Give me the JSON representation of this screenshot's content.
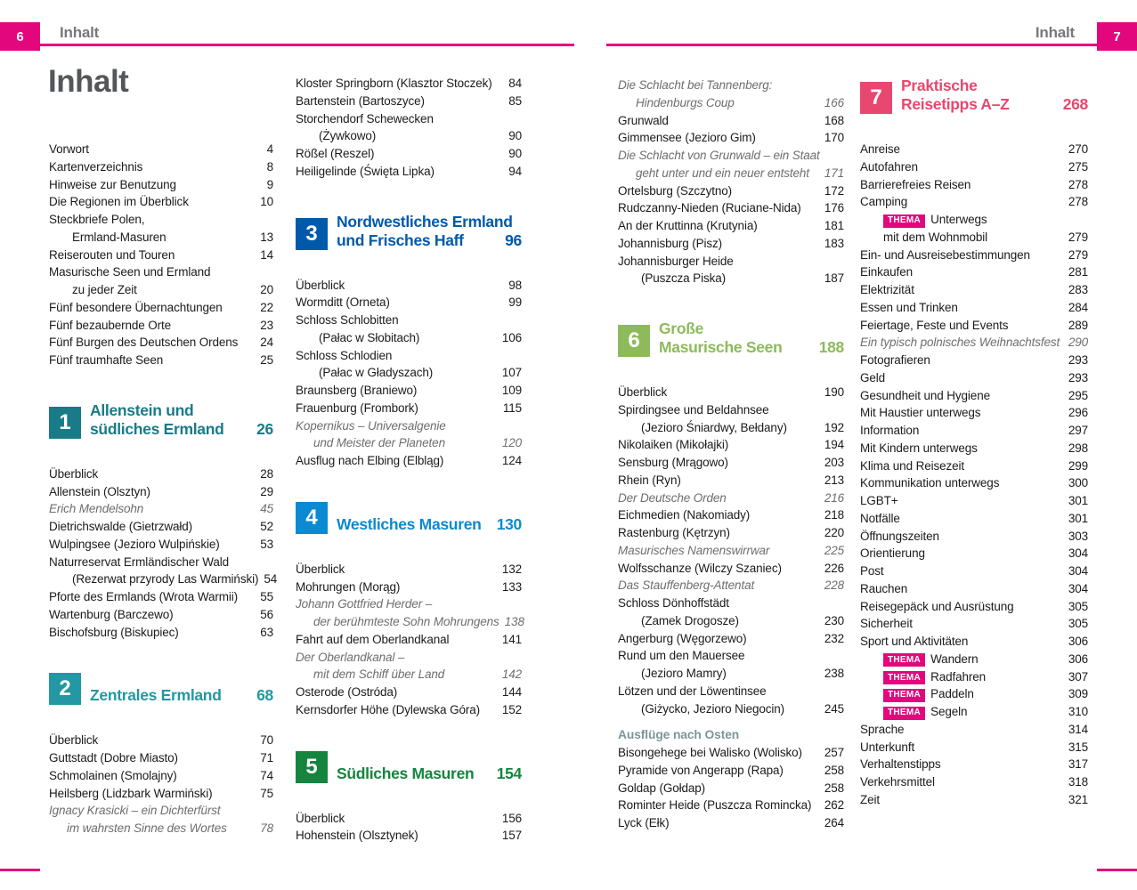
{
  "header": {
    "left_page_number": "6",
    "right_page_number": "7",
    "running_title_left": "Inhalt",
    "running_title_right": "Inhalt"
  },
  "title": "Inhalt",
  "thema_label": "THEMA",
  "colors": {
    "brand_pink": "#e3077d",
    "running_head_gray": "#77787b",
    "title_gray": "#55565b",
    "body_text": "#1b1b1b",
    "italic_gray": "#6d6e70",
    "subheading_gray_green": "#7e949b",
    "section1_teal": "#1a7b88",
    "section2_teal": "#2398a4",
    "section3_blue": "#005aa9",
    "section4_light_blue": "#0b8ad2",
    "section5_green": "#15843f",
    "section6_light_green": "#8eba5b",
    "section7_pink": "#e8486f"
  },
  "columns": [
    {
      "items": [
        {
          "type": "entry",
          "lines": [
            "Vorwort"
          ],
          "page": "4"
        },
        {
          "type": "entry",
          "lines": [
            "Kartenverzeichnis"
          ],
          "page": "8"
        },
        {
          "type": "entry",
          "lines": [
            "Hinweise zur Benutzung"
          ],
          "page": "9"
        },
        {
          "type": "entry",
          "lines": [
            "Die Regionen im Überblick"
          ],
          "page": "10"
        },
        {
          "type": "entry",
          "lines": [
            "Steckbriefe Polen,",
            "Ermland-Masuren"
          ],
          "page": "13"
        },
        {
          "type": "entry",
          "lines": [
            "Reiserouten und Touren"
          ],
          "page": "14"
        },
        {
          "type": "entry",
          "lines": [
            "Masurische Seen und Ermland",
            "zu jeder Zeit"
          ],
          "page": "20"
        },
        {
          "type": "entry",
          "lines": [
            "Fünf besondere Übernachtungen"
          ],
          "page": "22"
        },
        {
          "type": "entry",
          "lines": [
            "Fünf bezaubernde Orte"
          ],
          "page": "23"
        },
        {
          "type": "entry",
          "lines": [
            "Fünf Burgen des Deutschen Ordens"
          ],
          "page": "24"
        },
        {
          "type": "entry",
          "lines": [
            "Fünf traumhafte Seen"
          ],
          "page": "25"
        },
        {
          "type": "section",
          "num": "1",
          "lines": [
            "Allenstein und",
            "südliches Ermland"
          ],
          "page": "26",
          "color": "#1a7b88"
        },
        {
          "type": "entry",
          "lines": [
            "Überblick"
          ],
          "page": "28"
        },
        {
          "type": "entry",
          "lines": [
            "Allenstein (Olsztyn)"
          ],
          "page": "29"
        },
        {
          "type": "entry",
          "italic": true,
          "lines": [
            "Erich Mendelsohn"
          ],
          "page": "45"
        },
        {
          "type": "entry",
          "lines": [
            "Dietrichswalde (Gietrzwałd)"
          ],
          "page": "52"
        },
        {
          "type": "entry",
          "lines": [
            "Wulpingsee (Jezioro Wulpińskie)"
          ],
          "page": "53"
        },
        {
          "type": "entry",
          "lines": [
            "Naturreservat Ermländischer Wald",
            "(Rezerwat przyrody Las Warmiński)"
          ],
          "page": "54"
        },
        {
          "type": "entry",
          "lines": [
            "Pforte des Ermlands (Wrota Warmii)"
          ],
          "page": "55"
        },
        {
          "type": "entry",
          "lines": [
            "Wartenburg (Barczewo)"
          ],
          "page": "56"
        },
        {
          "type": "entry",
          "lines": [
            "Bischofsburg (Biskupiec)"
          ],
          "page": "63"
        },
        {
          "type": "section",
          "num": "2",
          "lines": [
            "Zentrales Ermland"
          ],
          "page": "68",
          "color": "#2398a4"
        },
        {
          "type": "entry",
          "lines": [
            "Überblick"
          ],
          "page": "70"
        },
        {
          "type": "entry",
          "lines": [
            "Guttstadt (Dobre Miasto)"
          ],
          "page": "71"
        },
        {
          "type": "entry",
          "lines": [
            "Schmolainen (Smolajny)"
          ],
          "page": "74"
        },
        {
          "type": "entry",
          "lines": [
            "Heilsberg (Lidzbark Warmiński)"
          ],
          "page": "75"
        },
        {
          "type": "entry",
          "italic": true,
          "lines": [
            "Ignacy Krasicki – ein Dichterfürst",
            "im wahrsten Sinne des Wortes"
          ],
          "page": "78"
        }
      ]
    },
    {
      "items": [
        {
          "type": "entry",
          "lines": [
            "Kloster Springborn (Klasztor Stoczek)"
          ],
          "page": "84"
        },
        {
          "type": "entry",
          "lines": [
            "Bartenstein (Bartoszyce)"
          ],
          "page": "85"
        },
        {
          "type": "entry",
          "lines": [
            "Storchendorf Schewecken",
            "(Żywkowo)"
          ],
          "page": "90"
        },
        {
          "type": "entry",
          "lines": [
            "Rößel (Reszel)"
          ],
          "page": "90"
        },
        {
          "type": "entry",
          "lines": [
            "Heiligelinde (Święta Lipka)"
          ],
          "page": "94"
        },
        {
          "type": "section",
          "num": "3",
          "lines": [
            "Nordwestliches Ermland",
            "und Frisches Haff"
          ],
          "page": "96",
          "color": "#005aa9"
        },
        {
          "type": "entry",
          "lines": [
            "Überblick"
          ],
          "page": "98"
        },
        {
          "type": "entry",
          "lines": [
            "Wormditt (Orneta)"
          ],
          "page": "99"
        },
        {
          "type": "entry",
          "lines": [
            "Schloss Schlobitten",
            "(Pałac w Słobitach)"
          ],
          "page": "106"
        },
        {
          "type": "entry",
          "lines": [
            "Schloss Schlodien",
            "(Pałac w Gładyszach)"
          ],
          "page": "107"
        },
        {
          "type": "entry",
          "lines": [
            "Braunsberg (Braniewo)"
          ],
          "page": "109"
        },
        {
          "type": "entry",
          "lines": [
            "Frauenburg (Frombork)"
          ],
          "page": "115"
        },
        {
          "type": "entry",
          "italic": true,
          "lines": [
            "Kopernikus – Universalgenie",
            "und Meister der Planeten"
          ],
          "page": "120"
        },
        {
          "type": "entry",
          "lines": [
            "Ausflug nach Elbing (Elbląg)"
          ],
          "page": "124"
        },
        {
          "type": "section",
          "num": "4",
          "lines": [
            "Westliches Masuren"
          ],
          "page": "130",
          "color": "#0b8ad2"
        },
        {
          "type": "entry",
          "lines": [
            "Überblick"
          ],
          "page": "132"
        },
        {
          "type": "entry",
          "lines": [
            "Mohrungen (Morąg)"
          ],
          "page": "133"
        },
        {
          "type": "entry",
          "italic": true,
          "lines": [
            "Johann Gottfried Herder –",
            "der berühmteste Sohn Mohrungens"
          ],
          "page": "138"
        },
        {
          "type": "entry",
          "lines": [
            "Fahrt auf dem Oberlandkanal"
          ],
          "page": "141"
        },
        {
          "type": "entry",
          "italic": true,
          "lines": [
            "Der Oberlandkanal –",
            "mit dem Schiff über Land"
          ],
          "page": "142"
        },
        {
          "type": "entry",
          "lines": [
            "Osterode (Ostróda)"
          ],
          "page": "144"
        },
        {
          "type": "entry",
          "lines": [
            "Kernsdorfer Höhe (Dylewska Góra)"
          ],
          "page": "152"
        },
        {
          "type": "section",
          "num": "5",
          "lines": [
            "Südliches Masuren"
          ],
          "page": "154",
          "color": "#15843f"
        },
        {
          "type": "entry",
          "lines": [
            "Überblick"
          ],
          "page": "156"
        },
        {
          "type": "entry",
          "lines": [
            "Hohenstein (Olsztynek)"
          ],
          "page": "157"
        }
      ]
    },
    {
      "items": [
        {
          "type": "entry",
          "italic": true,
          "lines": [
            "Die Schlacht bei Tannenberg:",
            "Hindenburgs Coup"
          ],
          "page": "166"
        },
        {
          "type": "entry",
          "lines": [
            "Grunwald"
          ],
          "page": "168"
        },
        {
          "type": "entry",
          "lines": [
            "Gimmensee (Jezioro Gim)"
          ],
          "page": "170"
        },
        {
          "type": "entry",
          "italic": true,
          "lines": [
            "Die Schlacht von Grunwald – ein Staat",
            "geht unter und ein neuer entsteht"
          ],
          "page": "171"
        },
        {
          "type": "entry",
          "lines": [
            "Ortelsburg (Szczytno)"
          ],
          "page": "172"
        },
        {
          "type": "entry",
          "lines": [
            "Rudczanny-Nieden (Ruciane-Nida)"
          ],
          "page": "176"
        },
        {
          "type": "entry",
          "lines": [
            "An der Kruttinna (Krutynia)"
          ],
          "page": "181"
        },
        {
          "type": "entry",
          "lines": [
            "Johannisburg (Pisz)"
          ],
          "page": "183"
        },
        {
          "type": "entry",
          "lines": [
            "Johannisburger Heide",
            "(Puszcza Piska)"
          ],
          "page": "187"
        },
        {
          "type": "section",
          "num": "6",
          "lines": [
            "Große",
            "Masurische Seen"
          ],
          "page": "188",
          "color": "#8eba5b"
        },
        {
          "type": "entry",
          "lines": [
            "Überblick"
          ],
          "page": "190"
        },
        {
          "type": "entry",
          "lines": [
            "Spirdingsee und Beldahnsee",
            "(Jezioro Śniardwy, Bełdany)"
          ],
          "page": "192"
        },
        {
          "type": "entry",
          "lines": [
            "Nikolaiken (Mikołajki)"
          ],
          "page": "194"
        },
        {
          "type": "entry",
          "lines": [
            "Sensburg (Mrągowo)"
          ],
          "page": "203"
        },
        {
          "type": "entry",
          "lines": [
            "Rhein (Ryn)"
          ],
          "page": "213"
        },
        {
          "type": "entry",
          "italic": true,
          "lines": [
            "Der Deutsche Orden"
          ],
          "page": "216"
        },
        {
          "type": "entry",
          "lines": [
            "Eichmedien (Nakomiady)"
          ],
          "page": "218"
        },
        {
          "type": "entry",
          "lines": [
            "Rastenburg (Kętrzyn)"
          ],
          "page": "220"
        },
        {
          "type": "entry",
          "italic": true,
          "lines": [
            "Masurisches Namenswirrwar"
          ],
          "page": "225"
        },
        {
          "type": "entry",
          "lines": [
            "Wolfsschanze (Wilczy Szaniec)"
          ],
          "page": "226"
        },
        {
          "type": "entry",
          "italic": true,
          "lines": [
            "Das Stauffenberg-Attentat"
          ],
          "page": "228"
        },
        {
          "type": "entry",
          "lines": [
            "Schloss Dönhoffstädt",
            "(Zamek Drogosze)"
          ],
          "page": "230"
        },
        {
          "type": "entry",
          "lines": [
            "Angerburg (Węgorzewo)"
          ],
          "page": "232"
        },
        {
          "type": "entry",
          "lines": [
            "Rund um den Mauersee",
            "(Jezioro Mamry)"
          ],
          "page": "238"
        },
        {
          "type": "entry",
          "lines": [
            "Lötzen und der Löwentinsee",
            "(Giżycko, Jezioro Niegocin)"
          ],
          "page": "245"
        },
        {
          "type": "subheading",
          "text": "Ausflüge nach Osten"
        },
        {
          "type": "entry",
          "lines": [
            "Bisongehege bei Walisko (Wolisko)"
          ],
          "page": "257"
        },
        {
          "type": "entry",
          "lines": [
            "Pyramide von Angerapp (Rapa)"
          ],
          "page": "258"
        },
        {
          "type": "entry",
          "lines": [
            "Goldap (Gołdap)"
          ],
          "page": "258"
        },
        {
          "type": "entry",
          "lines": [
            "Rominter Heide (Puszcza Romincka)"
          ],
          "page": "262"
        },
        {
          "type": "entry",
          "lines": [
            "Lyck (Ełk)"
          ],
          "page": "264"
        }
      ]
    },
    {
      "items": [
        {
          "type": "section",
          "num": "7",
          "lines": [
            "Praktische",
            "Reisetipps A–Z"
          ],
          "page": "268",
          "color": "#e8486f"
        },
        {
          "type": "entry",
          "lines": [
            "Anreise"
          ],
          "page": "270"
        },
        {
          "type": "entry",
          "lines": [
            "Autofahren"
          ],
          "page": "275"
        },
        {
          "type": "entry",
          "lines": [
            "Barrierefreies Reisen"
          ],
          "page": "278"
        },
        {
          "type": "entry",
          "lines": [
            "Camping"
          ],
          "page": "278"
        },
        {
          "type": "entry",
          "thema": true,
          "lines": [
            "Unterwegs",
            "mit dem Wohnmobil"
          ],
          "page": "279"
        },
        {
          "type": "entry",
          "lines": [
            "Ein- und Ausreisebestimmungen"
          ],
          "page": "279"
        },
        {
          "type": "entry",
          "lines": [
            "Einkaufen"
          ],
          "page": "281"
        },
        {
          "type": "entry",
          "lines": [
            "Elektrizität"
          ],
          "page": "283"
        },
        {
          "type": "entry",
          "lines": [
            "Essen und Trinken"
          ],
          "page": "284"
        },
        {
          "type": "entry",
          "lines": [
            "Feiertage, Feste und Events"
          ],
          "page": "289"
        },
        {
          "type": "entry",
          "italic": true,
          "lines": [
            "Ein typisch polnisches Weihnachtsfest"
          ],
          "page": "290"
        },
        {
          "type": "entry",
          "lines": [
            "Fotografieren"
          ],
          "page": "293"
        },
        {
          "type": "entry",
          "lines": [
            "Geld"
          ],
          "page": "293"
        },
        {
          "type": "entry",
          "lines": [
            "Gesundheit und Hygiene"
          ],
          "page": "295"
        },
        {
          "type": "entry",
          "lines": [
            "Mit Haustier unterwegs"
          ],
          "page": "296"
        },
        {
          "type": "entry",
          "lines": [
            "Information"
          ],
          "page": "297"
        },
        {
          "type": "entry",
          "lines": [
            "Mit Kindern unterwegs"
          ],
          "page": "298"
        },
        {
          "type": "entry",
          "lines": [
            "Klima und Reisezeit"
          ],
          "page": "299"
        },
        {
          "type": "entry",
          "lines": [
            "Kommunikation unterwegs"
          ],
          "page": "300"
        },
        {
          "type": "entry",
          "lines": [
            "LGBT+"
          ],
          "page": "301"
        },
        {
          "type": "entry",
          "lines": [
            "Notfälle"
          ],
          "page": "301"
        },
        {
          "type": "entry",
          "lines": [
            "Öffnungszeiten"
          ],
          "page": "303"
        },
        {
          "type": "entry",
          "lines": [
            "Orientierung"
          ],
          "page": "304"
        },
        {
          "type": "entry",
          "lines": [
            "Post"
          ],
          "page": "304"
        },
        {
          "type": "entry",
          "lines": [
            "Rauchen"
          ],
          "page": "304"
        },
        {
          "type": "entry",
          "lines": [
            "Reisegepäck und Ausrüstung"
          ],
          "page": "305"
        },
        {
          "type": "entry",
          "lines": [
            "Sicherheit"
          ],
          "page": "305"
        },
        {
          "type": "entry",
          "lines": [
            "Sport und Aktivitäten"
          ],
          "page": "306"
        },
        {
          "type": "entry",
          "thema": true,
          "lines": [
            "Wandern"
          ],
          "page": "306"
        },
        {
          "type": "entry",
          "thema": true,
          "lines": [
            "Radfahren"
          ],
          "page": "307"
        },
        {
          "type": "entry",
          "thema": true,
          "lines": [
            "Paddeln"
          ],
          "page": "309"
        },
        {
          "type": "entry",
          "thema": true,
          "lines": [
            "Segeln"
          ],
          "page": "310"
        },
        {
          "type": "entry",
          "lines": [
            "Sprache"
          ],
          "page": "314"
        },
        {
          "type": "entry",
          "lines": [
            "Unterkunft"
          ],
          "page": "315"
        },
        {
          "type": "entry",
          "lines": [
            "Verhaltenstipps"
          ],
          "page": "317"
        },
        {
          "type": "entry",
          "lines": [
            "Verkehrsmittel"
          ],
          "page": "318"
        },
        {
          "type": "entry",
          "lines": [
            "Zeit"
          ],
          "page": "321"
        }
      ]
    }
  ]
}
